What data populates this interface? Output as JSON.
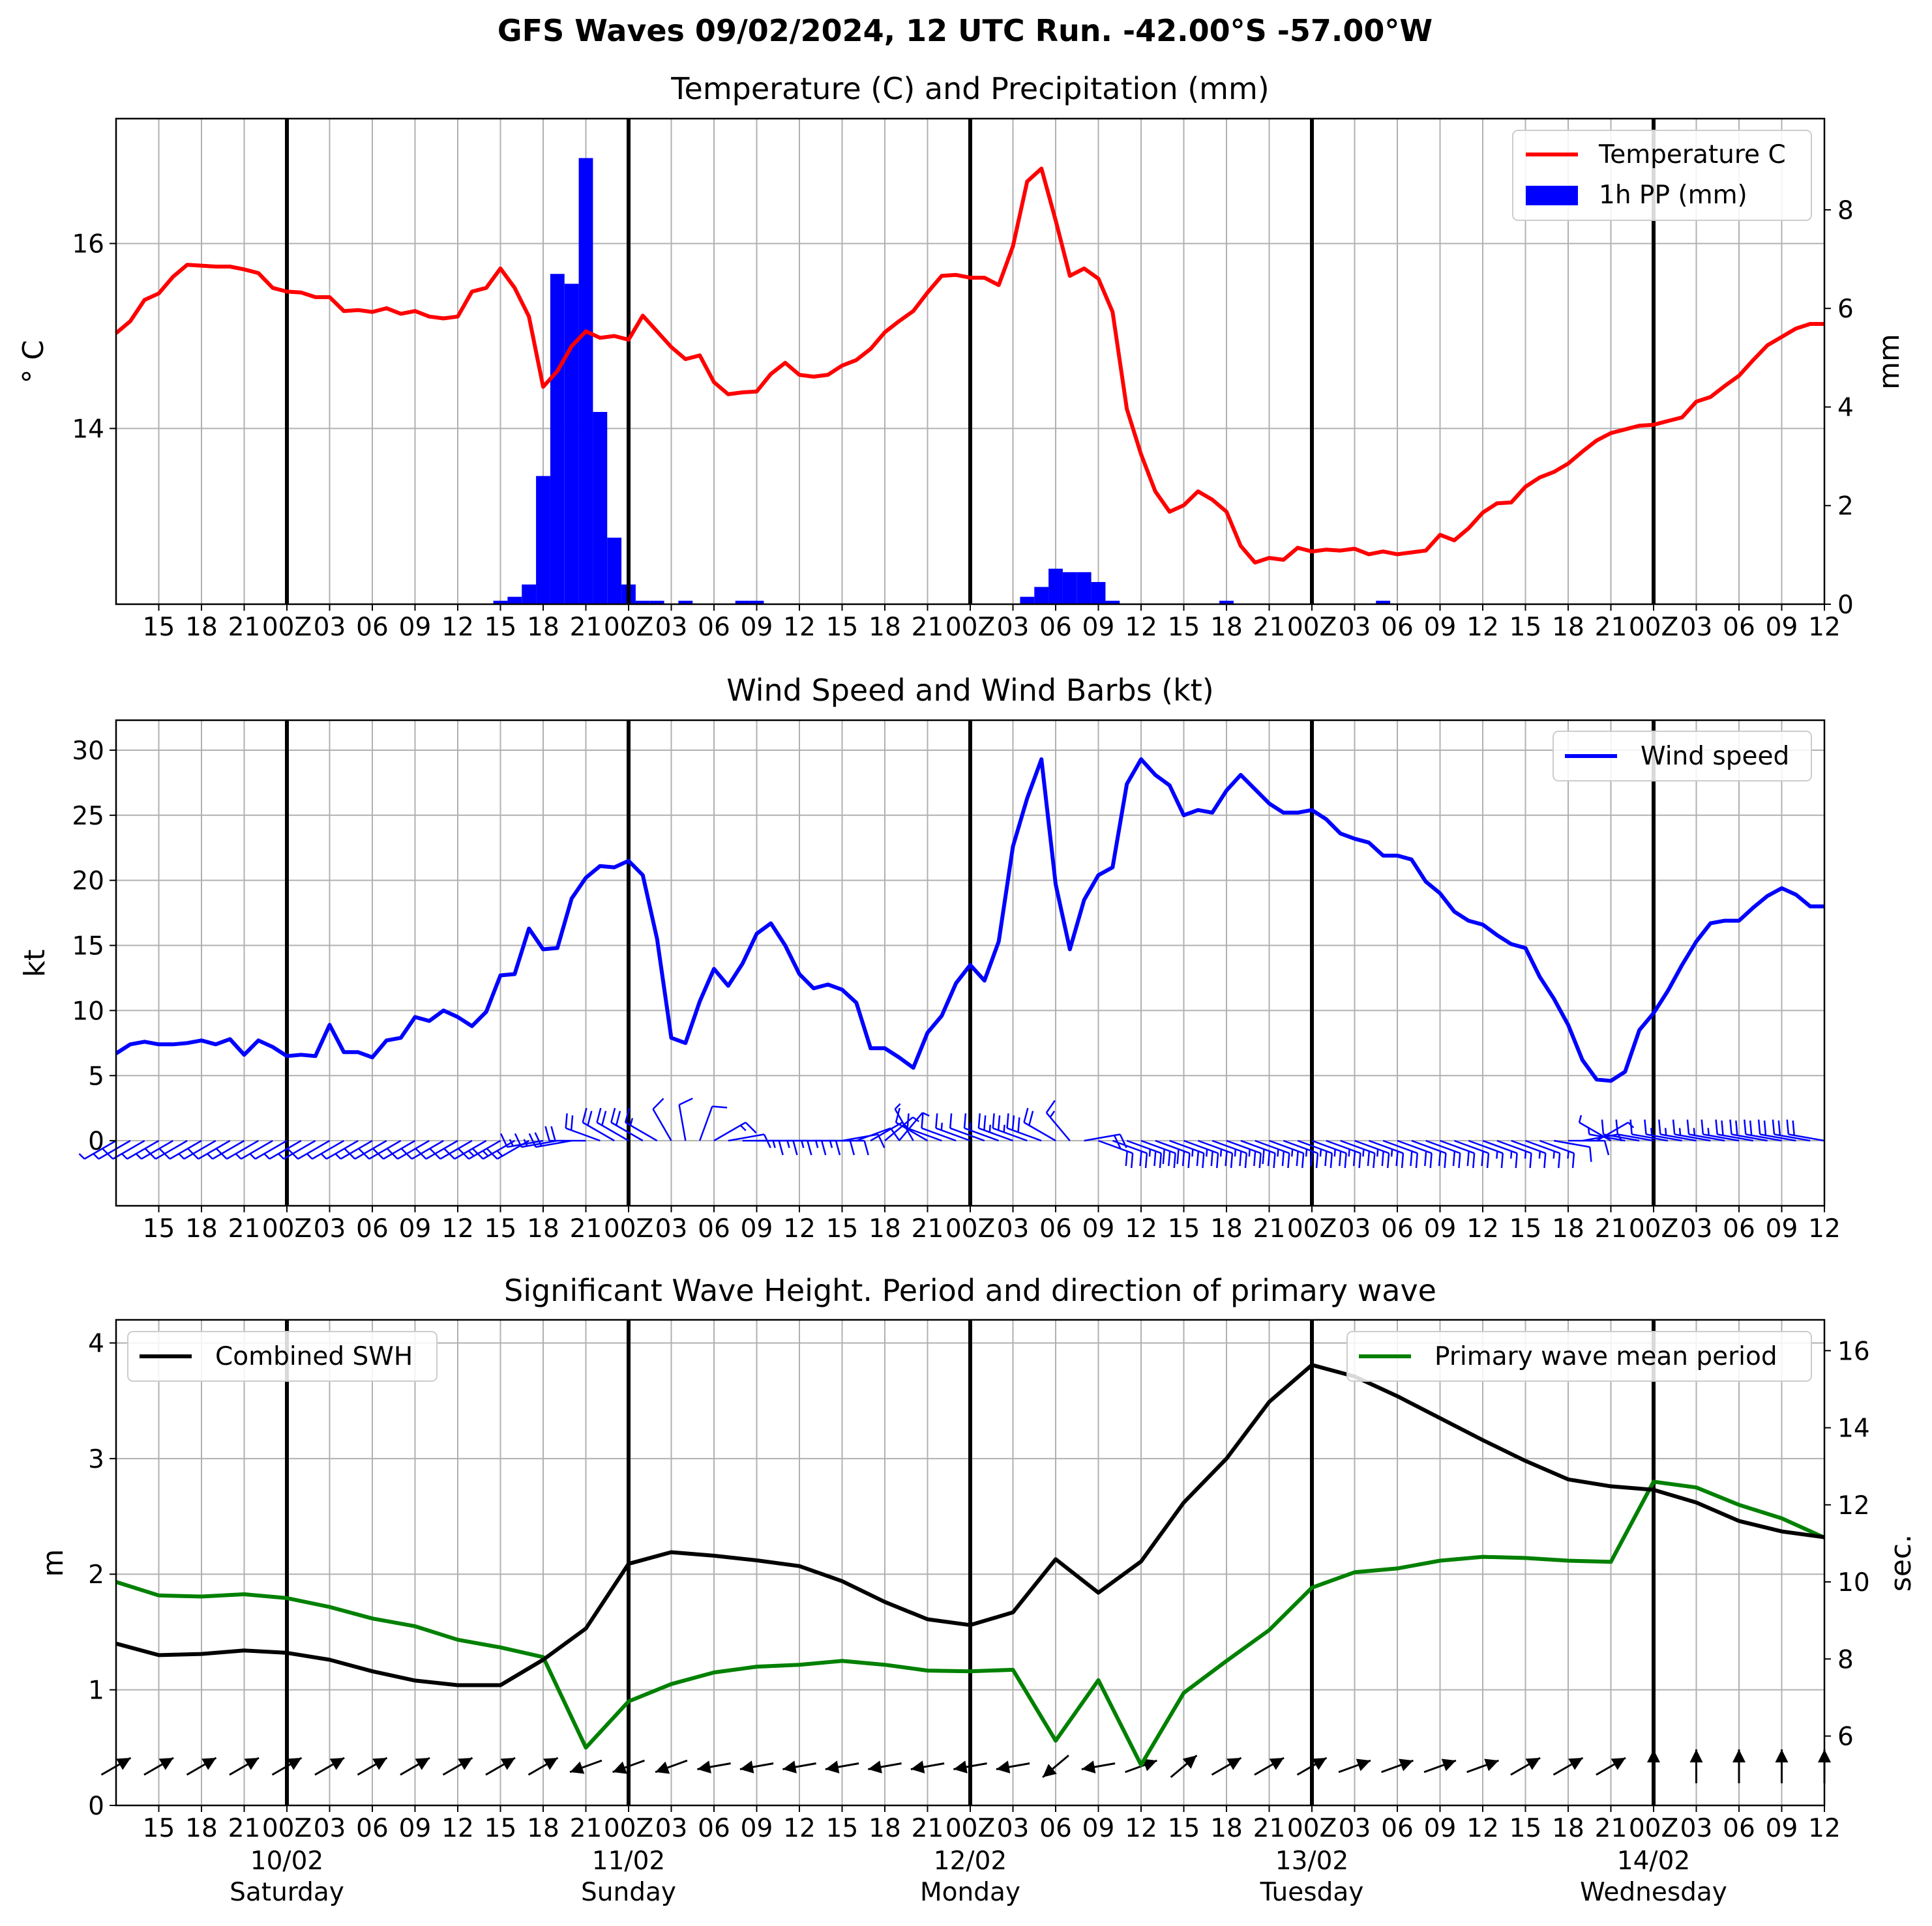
{
  "suptitle": "GFS Waves 09/02/2024, 12 UTC Run. -42.00°S -57.00°W",
  "colors": {
    "temperature": "#ff0000",
    "precip": "#0000ff",
    "wind": "#0000ff",
    "swh": "#000000",
    "period": "#008000",
    "grid": "#b0b0b0"
  },
  "time_axis": {
    "start_hour": 12,
    "end_hour": 132,
    "tick_labels": [
      "15",
      "18",
      "21",
      "00Z",
      "03",
      "06",
      "09",
      "12",
      "15",
      "18",
      "21",
      "00Z",
      "03",
      "06",
      "09",
      "12",
      "15",
      "18",
      "21",
      "00Z",
      "03",
      "06",
      "09",
      "12",
      "15",
      "18",
      "21",
      "00Z",
      "03",
      "06",
      "09",
      "12",
      "15",
      "18",
      "21",
      "00Z",
      "03",
      "06",
      "09",
      "12"
    ],
    "day_labels": [
      {
        "date": "10/02",
        "day": "Saturday"
      },
      {
        "date": "11/02",
        "day": "Sunday"
      },
      {
        "date": "12/02",
        "day": "Monday"
      },
      {
        "date": "13/02",
        "day": "Tuesday"
      },
      {
        "date": "14/02",
        "day": "Wednesday"
      }
    ]
  },
  "chart_data": [
    {
      "type": "line",
      "title": "Temperature (C) and Precipitation (mm)",
      "ylabel": "$^\\circ$C",
      "ylabel_display": "° C",
      "y2label": "mm",
      "ylim": [
        12.1,
        17.35
      ],
      "y2lim": [
        0,
        9.85
      ],
      "yticks": [
        14,
        16
      ],
      "y2ticks": [
        0,
        2,
        4,
        6,
        8
      ],
      "legend": [
        "Temperature C",
        "1h PP (mm)"
      ],
      "legend_position": "top-right",
      "temperature": [
        15.03,
        15.16,
        15.39,
        15.46,
        15.64,
        15.77,
        15.76,
        15.75,
        15.75,
        15.72,
        15.68,
        15.52,
        15.48,
        15.47,
        15.42,
        15.42,
        15.27,
        15.28,
        15.26,
        15.3,
        15.24,
        15.27,
        15.21,
        15.19,
        15.21,
        15.48,
        15.52,
        15.73,
        15.52,
        15.21,
        14.45,
        14.62,
        14.89,
        15.05,
        14.98,
        15.0,
        14.96,
        15.22,
        15.05,
        14.88,
        14.75,
        14.79,
        14.5,
        14.37,
        14.39,
        14.4,
        14.59,
        14.71,
        14.58,
        14.56,
        14.58,
        14.68,
        14.74,
        14.86,
        15.04,
        15.16,
        15.27,
        15.47,
        15.65,
        15.66,
        15.63,
        15.63,
        15.55,
        15.97,
        16.67,
        16.81,
        16.25,
        15.65,
        15.73,
        15.62,
        15.26,
        14.21,
        13.72,
        13.32,
        13.1,
        13.17,
        13.32,
        13.23,
        13.1,
        12.73,
        12.55,
        12.6,
        12.58,
        12.71,
        12.67,
        12.69,
        12.68,
        12.7,
        12.64,
        12.67,
        12.64,
        12.66,
        12.68,
        12.85,
        12.79,
        12.92,
        13.09,
        13.19,
        13.2,
        13.37,
        13.47,
        13.53,
        13.62,
        13.75,
        13.87,
        13.95,
        13.99,
        14.03,
        14.04,
        14.08,
        14.12,
        14.29,
        14.34,
        14.46,
        14.57,
        14.74,
        14.9,
        14.99,
        15.08,
        15.13,
        15.13
      ],
      "precip_1h": [
        0,
        0,
        0,
        0,
        0,
        0,
        0,
        0,
        0,
        0,
        0,
        0,
        0,
        0,
        0,
        0,
        0,
        0,
        0,
        0,
        0,
        0,
        0,
        0,
        0,
        0,
        0,
        0.07,
        0.15,
        0.4,
        2.6,
        6.7,
        6.5,
        9.05,
        3.9,
        1.35,
        0.4,
        0.07,
        0.07,
        0,
        0.07,
        0,
        0,
        0,
        0.07,
        0.07,
        0,
        0,
        0,
        0,
        0,
        0,
        0,
        0,
        0,
        0,
        0,
        0,
        0,
        0,
        0,
        0,
        0,
        0,
        0.15,
        0.35,
        0.72,
        0.65,
        0.65,
        0.45,
        0.07,
        0,
        0,
        0,
        0,
        0,
        0,
        0,
        0.07,
        0,
        0,
        0,
        0,
        0,
        0,
        0,
        0,
        0,
        0,
        0.07,
        0,
        0,
        0,
        0,
        0,
        0,
        0,
        0,
        0,
        0,
        0,
        0,
        0,
        0,
        0,
        0,
        0,
        0,
        0,
        0,
        0,
        0,
        0,
        0,
        0,
        0,
        0,
        0,
        0,
        0,
        0
      ]
    },
    {
      "type": "line",
      "title": "Wind Speed and Wind Barbs (kt)",
      "ylabel": "kt",
      "ylim": [
        -5,
        32.3
      ],
      "yticks": [
        0,
        5,
        10,
        15,
        20,
        25,
        30
      ],
      "legend": [
        "Wind speed"
      ],
      "legend_position": "top-right",
      "wind_speed": [
        6.7,
        7.4,
        7.6,
        7.4,
        7.4,
        7.5,
        7.7,
        7.4,
        7.8,
        6.6,
        7.7,
        7.2,
        6.5,
        6.6,
        6.5,
        8.9,
        6.8,
        6.8,
        6.4,
        7.7,
        7.9,
        9.5,
        9.2,
        10.0,
        9.5,
        8.8,
        9.9,
        12.7,
        12.8,
        16.3,
        14.7,
        14.8,
        18.6,
        20.2,
        21.1,
        21.0,
        21.5,
        20.4,
        15.5,
        7.9,
        7.5,
        10.7,
        13.2,
        11.9,
        13.6,
        15.9,
        16.7,
        15.0,
        12.8,
        11.7,
        12.0,
        11.6,
        10.6,
        7.1,
        7.1,
        6.4,
        5.6,
        8.3,
        9.6,
        12.1,
        13.5,
        12.3,
        15.3,
        22.6,
        26.3,
        29.3,
        19.7,
        14.7,
        18.5,
        20.4,
        21.0,
        27.4,
        29.3,
        28.1,
        27.3,
        25.0,
        25.4,
        25.2,
        26.9,
        28.1,
        27.0,
        25.9,
        25.2,
        25.2,
        25.4,
        24.7,
        23.6,
        23.2,
        22.9,
        21.9,
        21.9,
        21.6,
        19.9,
        19.0,
        17.6,
        16.9,
        16.6,
        15.8,
        15.1,
        14.8,
        12.6,
        10.9,
        8.9,
        6.2,
        4.7,
        4.6,
        5.3,
        8.5,
        9.8,
        11.5,
        13.5,
        15.3,
        16.7,
        16.9,
        16.9,
        17.9,
        18.8,
        19.4,
        18.9,
        18.0,
        18.0
      ],
      "wind_direction_deg": [
        240,
        240,
        240,
        240,
        240,
        240,
        240,
        240,
        240,
        240,
        240,
        240,
        240,
        240,
        240,
        240,
        240,
        240,
        240,
        240,
        240,
        240,
        240,
        240,
        240,
        240,
        240,
        240,
        240,
        240,
        260,
        260,
        260,
        270,
        290,
        300,
        300,
        300,
        300,
        330,
        350,
        20,
        60,
        80,
        90,
        90,
        90,
        90,
        90,
        90,
        90,
        80,
        70,
        60,
        50,
        40,
        330,
        300,
        290,
        290,
        290,
        290,
        290,
        290,
        290,
        290,
        300,
        320,
        80,
        110,
        110,
        110,
        110,
        110,
        110,
        110,
        110,
        110,
        110,
        110,
        110,
        110,
        110,
        110,
        110,
        110,
        110,
        110,
        110,
        110,
        110,
        110,
        110,
        110,
        110,
        110,
        110,
        110,
        110,
        110,
        110,
        100,
        90,
        80,
        60,
        300,
        280,
        280,
        280,
        280,
        280,
        280,
        280,
        280,
        280,
        280,
        280,
        280,
        280,
        280,
        280
      ]
    },
    {
      "type": "line",
      "title": "Significant Wave Height. Period and direction of primary wave",
      "ylabel": "m",
      "y2label": "sec.",
      "ylim": [
        0,
        4.2
      ],
      "y2lim": [
        4.2,
        16.8
      ],
      "yticks": [
        0,
        1,
        2,
        3,
        4
      ],
      "y2ticks": [
        6,
        8,
        10,
        12,
        14,
        16
      ],
      "legend": [
        "Combined SWH",
        "Primary wave mean period"
      ],
      "legend_position": "top",
      "hours": [
        12,
        15,
        18,
        21,
        24,
        27,
        30,
        33,
        36,
        39,
        42,
        45,
        48,
        51,
        54,
        57,
        60,
        63,
        66,
        69,
        72,
        75,
        78,
        81,
        84,
        87,
        90,
        93,
        96,
        99,
        102,
        105,
        108,
        111,
        114,
        117,
        120,
        123,
        126,
        129,
        132
      ],
      "swh": [
        1.4,
        1.3,
        1.31,
        1.34,
        1.32,
        1.26,
        1.16,
        1.08,
        1.04,
        1.04,
        1.26,
        1.53,
        2.09,
        2.19,
        2.16,
        2.12,
        2.07,
        1.94,
        1.76,
        1.61,
        1.56,
        1.67,
        2.13,
        1.84,
        2.11,
        2.62,
        3.0,
        3.49,
        3.81,
        3.71,
        3.54,
        3.35,
        3.16,
        2.98,
        2.82,
        2.76,
        2.73,
        2.62,
        2.46,
        2.37,
        2.32
      ],
      "period": [
        10.0,
        9.65,
        9.62,
        9.68,
        9.58,
        9.35,
        9.05,
        8.85,
        8.5,
        8.3,
        8.05,
        5.7,
        6.9,
        7.35,
        7.65,
        7.8,
        7.85,
        7.95,
        7.85,
        7.7,
        7.68,
        7.72,
        5.88,
        7.45,
        5.25,
        7.12,
        7.95,
        8.75,
        9.85,
        10.25,
        10.35,
        10.55,
        10.65,
        10.62,
        10.55,
        10.52,
        12.6,
        12.45,
        12.0,
        11.65,
        11.15
      ],
      "wave_direction_deg": [
        240,
        240,
        240,
        240,
        240,
        240,
        240,
        240,
        240,
        240,
        240,
        70,
        70,
        70,
        80,
        80,
        80,
        80,
        80,
        80,
        80,
        80,
        50,
        80,
        250,
        230,
        240,
        240,
        240,
        250,
        250,
        250,
        250,
        240,
        240,
        240,
        180,
        180,
        180,
        180,
        180
      ]
    }
  ]
}
